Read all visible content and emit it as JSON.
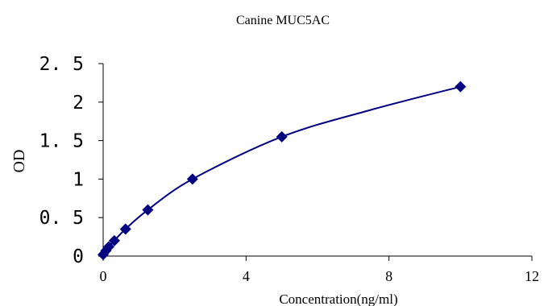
{
  "chart_data": {
    "type": "scatter",
    "title": "Canine MUC5AC",
    "xlabel": "Concentration(ng/ml)",
    "ylabel": "OD",
    "xlim": [
      0,
      12
    ],
    "ylim": [
      0,
      2.5
    ],
    "xticks": [
      0,
      4,
      8,
      12
    ],
    "xtick_labels": [
      "0",
      "4",
      "8",
      "12"
    ],
    "yticks": [
      0,
      0.5,
      1,
      1.5,
      2,
      2.5
    ],
    "ytick_labels": [
      "0",
      "0. 5",
      "1",
      "1. 5",
      "2",
      "2. 5"
    ],
    "grid": false,
    "legend": "none",
    "marker": "diamond",
    "color": "#000080",
    "series": [
      {
        "x": [
          0,
          0.078,
          0.156,
          0.313,
          0.625,
          1.25,
          2.5,
          5,
          10
        ],
        "y": [
          0.02,
          0.07,
          0.12,
          0.2,
          0.35,
          0.6,
          1.0,
          1.55,
          2.2
        ]
      }
    ],
    "curve": {
      "type": "smooth-fit",
      "x": [
        0,
        0.078,
        0.156,
        0.313,
        0.625,
        1.25,
        2.5,
        5,
        7.5,
        10
      ],
      "y": [
        0.02,
        0.07,
        0.12,
        0.2,
        0.35,
        0.6,
        1.0,
        1.55,
        1.9,
        2.2
      ]
    }
  }
}
